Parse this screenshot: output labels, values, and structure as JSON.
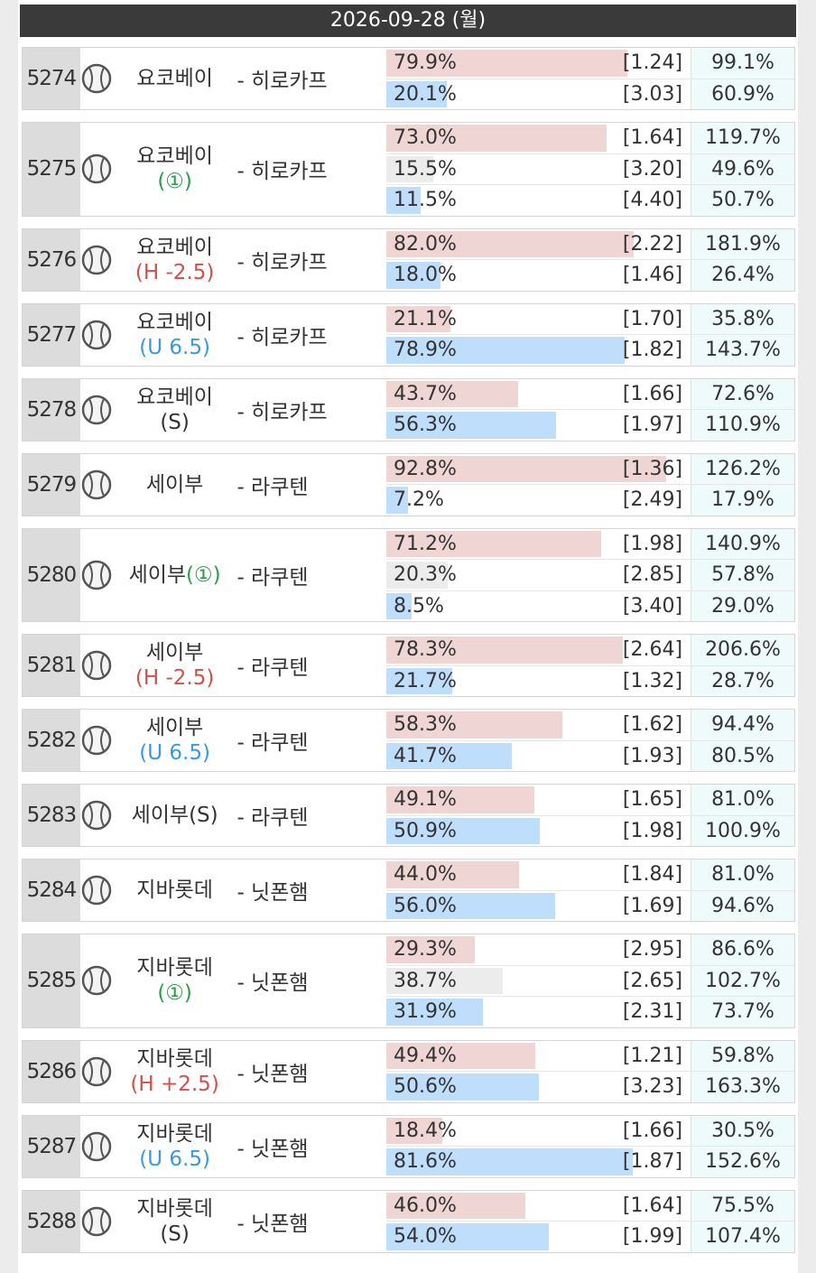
{
  "header": {
    "date": "2026-09-28 (월)"
  },
  "matches": [
    {
      "id": "5274",
      "home": "요코베이",
      "away": "- 히로카프",
      "lines": [
        [
          {
            "value": 79.9,
            "label": "79.9%"
          },
          "[1.24]",
          "99.1%"
        ],
        [
          {
            "value": 20.1,
            "label": "20.1%"
          },
          "[3.03]",
          "60.9%"
        ]
      ]
    },
    {
      "id": "5275",
      "home": "요코베이",
      "tag": "(①)",
      "away": "- 히로카프",
      "lines": [
        [
          {
            "value": 73.0,
            "label": "73.0%"
          },
          "[1.64]",
          "119.7%"
        ],
        [
          {
            "value": 15.5,
            "label": "15.5%"
          },
          "[3.20]",
          "49.6%"
        ],
        [
          {
            "value": 11.5,
            "label": "11.5%"
          },
          "[4.40]",
          "50.7%"
        ]
      ]
    },
    {
      "id": "5276",
      "home": "요코베이",
      "tag": "(H -2.5)",
      "away": "- 히로카프",
      "lines": [
        [
          {
            "value": 82.0,
            "label": "82.0%"
          },
          "[2.22]",
          "181.9%"
        ],
        [
          {
            "value": 18.0,
            "label": "18.0%"
          },
          "[1.46]",
          "26.4%"
        ]
      ]
    },
    {
      "id": "5277",
      "home": "요코베이",
      "tag": "(U 6.5)",
      "away": "- 히로카프",
      "lines": [
        [
          {
            "value": 21.1,
            "label": "21.1%"
          },
          "[1.70]",
          "35.8%"
        ],
        [
          {
            "value": 78.9,
            "label": "78.9%"
          },
          "[1.82]",
          "143.7%"
        ]
      ]
    },
    {
      "id": "5278",
      "home": "요코베이",
      "tag": "(S)",
      "away": "- 히로카프",
      "lines": [
        [
          {
            "value": 43.7,
            "label": "43.7%"
          },
          "[1.66]",
          "72.6%"
        ],
        [
          {
            "value": 56.3,
            "label": "56.3%"
          },
          "[1.97]",
          "110.9%"
        ]
      ]
    },
    {
      "id": "5279",
      "home": "세이부",
      "away": "- 라쿠텐",
      "lines": [
        [
          {
            "value": 92.8,
            "label": "92.8%"
          },
          "[1.36]",
          "126.2%"
        ],
        [
          {
            "value": 7.2,
            "label": "7.2%"
          },
          "[2.49]",
          "17.9%"
        ]
      ]
    },
    {
      "id": "5280",
      "home": "세이부",
      "tag": "(①)",
      "away": "- 라쿠텐",
      "lines": [
        [
          {
            "value": 71.2,
            "label": "71.2%"
          },
          "[1.98]",
          "140.9%"
        ],
        [
          {
            "value": 20.3,
            "label": "20.3%"
          },
          "[2.85]",
          "57.8%"
        ],
        [
          {
            "value": 8.5,
            "label": "8.5%"
          },
          "[3.40]",
          "29.0%"
        ]
      ]
    },
    {
      "id": "5281",
      "home": "세이부",
      "tag": "(H -2.5)",
      "away": "- 라쿠텐",
      "lines": [
        [
          {
            "value": 78.3,
            "label": "78.3%"
          },
          "[2.64]",
          "206.6%"
        ],
        [
          {
            "value": 21.7,
            "label": "21.7%"
          },
          "[1.32]",
          "28.7%"
        ]
      ]
    },
    {
      "id": "5282",
      "home": "세이부",
      "tag": "(U 6.5)",
      "away": "- 라쿠텐",
      "lines": [
        [
          {
            "value": 58.3,
            "label": "58.3%"
          },
          "[1.62]",
          "94.4%"
        ],
        [
          {
            "value": 41.7,
            "label": "41.7%"
          },
          "[1.93]",
          "80.5%"
        ]
      ]
    },
    {
      "id": "5283",
      "home": "세이부",
      "tag": "(S)",
      "away": "- 라쿠텐",
      "lines": [
        [
          {
            "value": 49.1,
            "label": "49.1%"
          },
          "[1.65]",
          "81.0%"
        ],
        [
          {
            "value": 50.9,
            "label": "50.9%"
          },
          "[1.98]",
          "100.9%"
        ]
      ]
    },
    {
      "id": "5284",
      "home": "지바롯데",
      "away": "- 닛폰햄",
      "lines": [
        [
          {
            "value": 44.0,
            "label": "44.0%"
          },
          "[1.84]",
          "81.0%"
        ],
        [
          {
            "value": 56.0,
            "label": "56.0%"
          },
          "[1.69]",
          "94.6%"
        ]
      ]
    },
    {
      "id": "5285",
      "home": "지바롯데",
      "tag": "(①)",
      "away": "- 닛폰햄",
      "lines": [
        [
          {
            "value": 29.3,
            "label": "29.3%"
          },
          "[2.95]",
          "86.6%"
        ],
        [
          {
            "value": 38.7,
            "label": "38.7%"
          },
          "[2.65]",
          "102.7%"
        ],
        [
          {
            "value": 31.9,
            "label": "31.9%"
          },
          "[2.31]",
          "73.7%"
        ]
      ]
    },
    {
      "id": "5286",
      "home": "지바롯데",
      "tag": "(H +2.5)",
      "away": "- 닛폰햄",
      "lines": [
        [
          {
            "value": 49.4,
            "label": "49.4%"
          },
          "[1.21]",
          "59.8%"
        ],
        [
          {
            "value": 50.6,
            "label": "50.6%"
          },
          "[3.23]",
          "163.3%"
        ]
      ]
    },
    {
      "id": "5287",
      "home": "지바롯데",
      "tag": "(U 6.5)",
      "away": "- 닛폰햄",
      "lines": [
        [
          {
            "value": 18.4,
            "label": "18.4%"
          },
          "[1.66]",
          "30.5%"
        ],
        [
          {
            "value": 81.6,
            "label": "81.6%"
          },
          "[1.87]",
          "152.6%"
        ]
      ]
    },
    {
      "id": "5288",
      "home": "지바롯데",
      "tag": "(S)",
      "away": "- 닛폰햄",
      "lines": [
        [
          {
            "value": 46.0,
            "label": "46.0%"
          },
          "[1.64]",
          "75.5%"
        ],
        [
          {
            "value": 54.0,
            "label": "54.0%"
          },
          "[1.99]",
          "107.4%"
        ]
      ]
    }
  ]
}
